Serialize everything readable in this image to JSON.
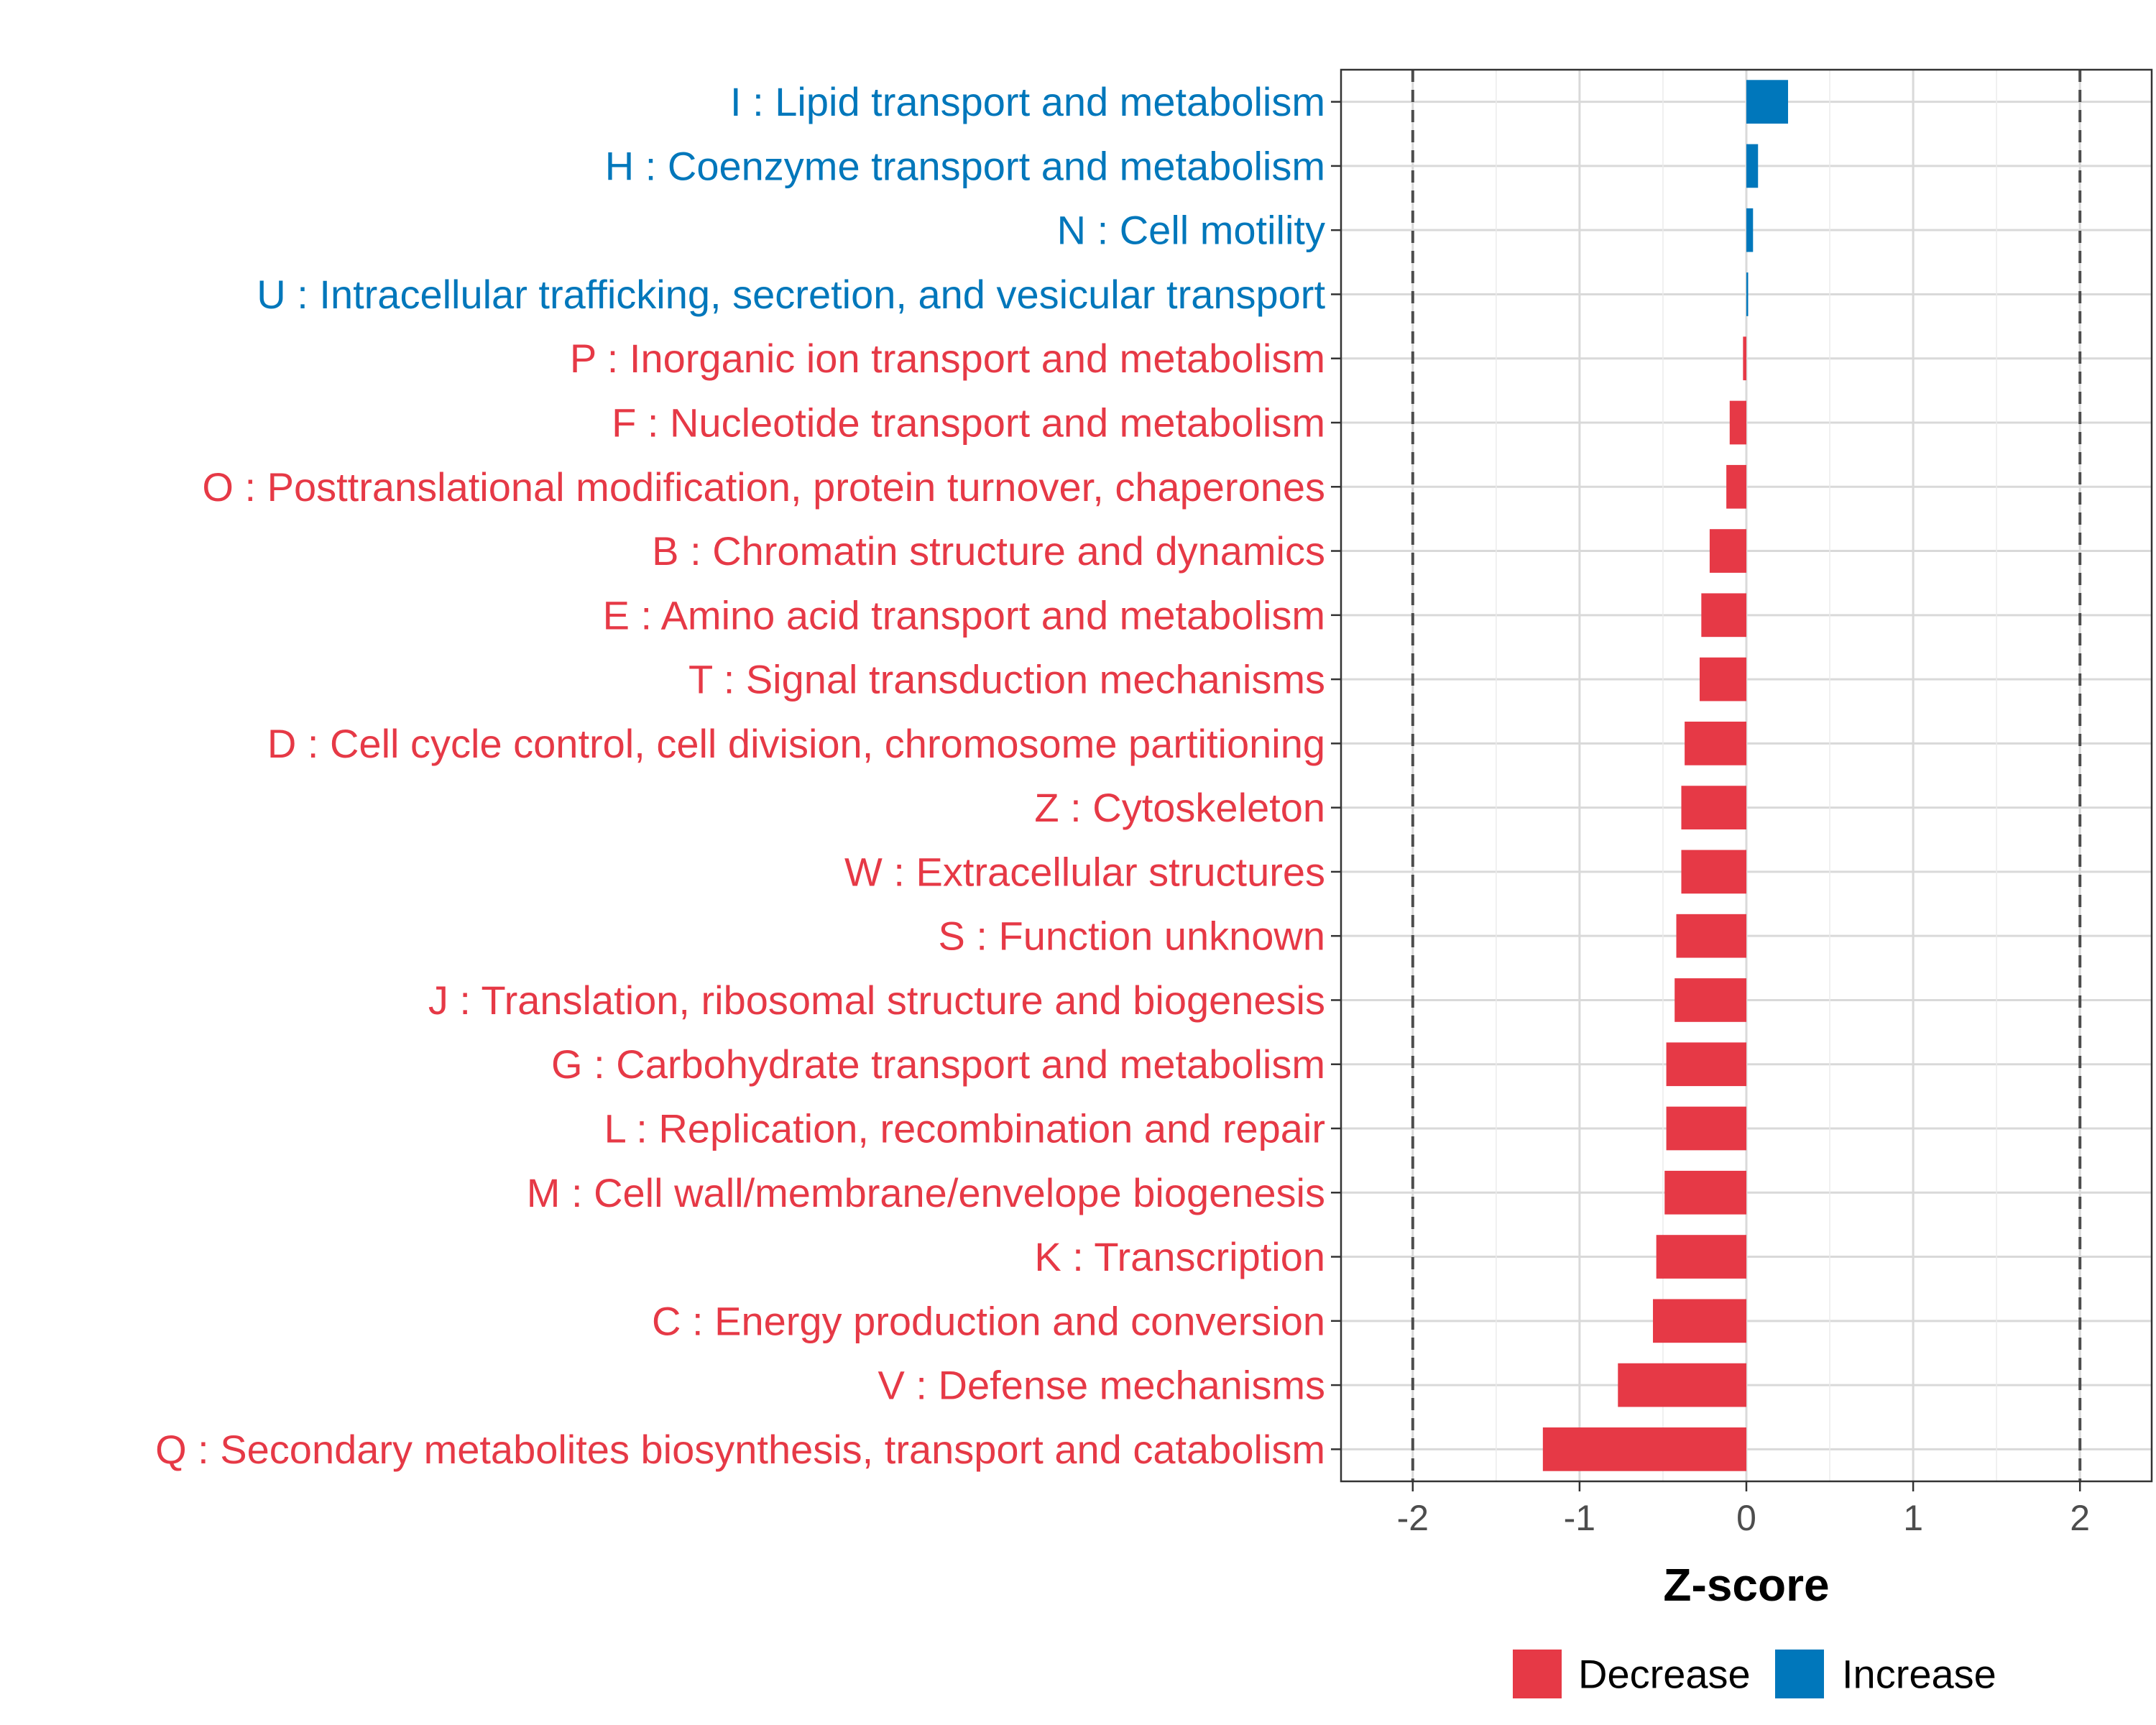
{
  "chart_data": {
    "type": "bar",
    "orientation": "horizontal",
    "title": "",
    "xlabel": "Z-score",
    "ylabel": "",
    "xlim": [
      -2.43,
      2.43
    ],
    "x_ticks": [
      -2,
      -1,
      0,
      1,
      2
    ],
    "x_tick_labels": [
      "-2",
      "-1",
      "0",
      "1",
      "2"
    ],
    "reference_lines": [
      -2,
      2
    ],
    "grid": true,
    "colors": {
      "Decrease": "#E63946",
      "Increase": "#0077BB"
    },
    "legend": {
      "position": "bottom",
      "entries": [
        {
          "name": "Decrease",
          "color": "#E63946"
        },
        {
          "name": "Increase",
          "color": "#0077BB"
        }
      ]
    },
    "categories": [
      "I : Lipid transport and metabolism",
      "H : Coenzyme transport and metabolism",
      "N : Cell motility",
      "U : Intracellular trafficking, secretion, and vesicular transport",
      "P : Inorganic ion transport and metabolism",
      "F : Nucleotide transport and metabolism",
      "O : Posttranslational modification, protein turnover, chaperones",
      "B : Chromatin structure and dynamics",
      "E : Amino acid transport and metabolism",
      "T : Signal transduction mechanisms",
      "D : Cell cycle control, cell division, chromosome partitioning",
      "Z : Cytoskeleton",
      "W : Extracellular structures",
      "S : Function unknown",
      "J : Translation, ribosomal structure and biogenesis",
      "G : Carbohydrate transport and metabolism",
      "L : Replication, recombination and repair",
      "M : Cell wall/membrane/envelope biogenesis",
      "K : Transcription",
      "C : Energy production and conversion",
      "V : Defense mechanisms",
      "Q : Secondary metabolites biosynthesis, transport and catabolism"
    ],
    "values": [
      0.25,
      0.07,
      0.04,
      0.01,
      -0.02,
      -0.1,
      -0.12,
      -0.22,
      -0.27,
      -0.28,
      -0.37,
      -0.39,
      -0.39,
      -0.42,
      -0.43,
      -0.48,
      -0.48,
      -0.49,
      -0.54,
      -0.56,
      -0.77,
      -1.22
    ],
    "groups": [
      "Increase",
      "Increase",
      "Increase",
      "Increase",
      "Decrease",
      "Decrease",
      "Decrease",
      "Decrease",
      "Decrease",
      "Decrease",
      "Decrease",
      "Decrease",
      "Decrease",
      "Decrease",
      "Decrease",
      "Decrease",
      "Decrease",
      "Decrease",
      "Decrease",
      "Decrease",
      "Decrease",
      "Decrease"
    ]
  }
}
